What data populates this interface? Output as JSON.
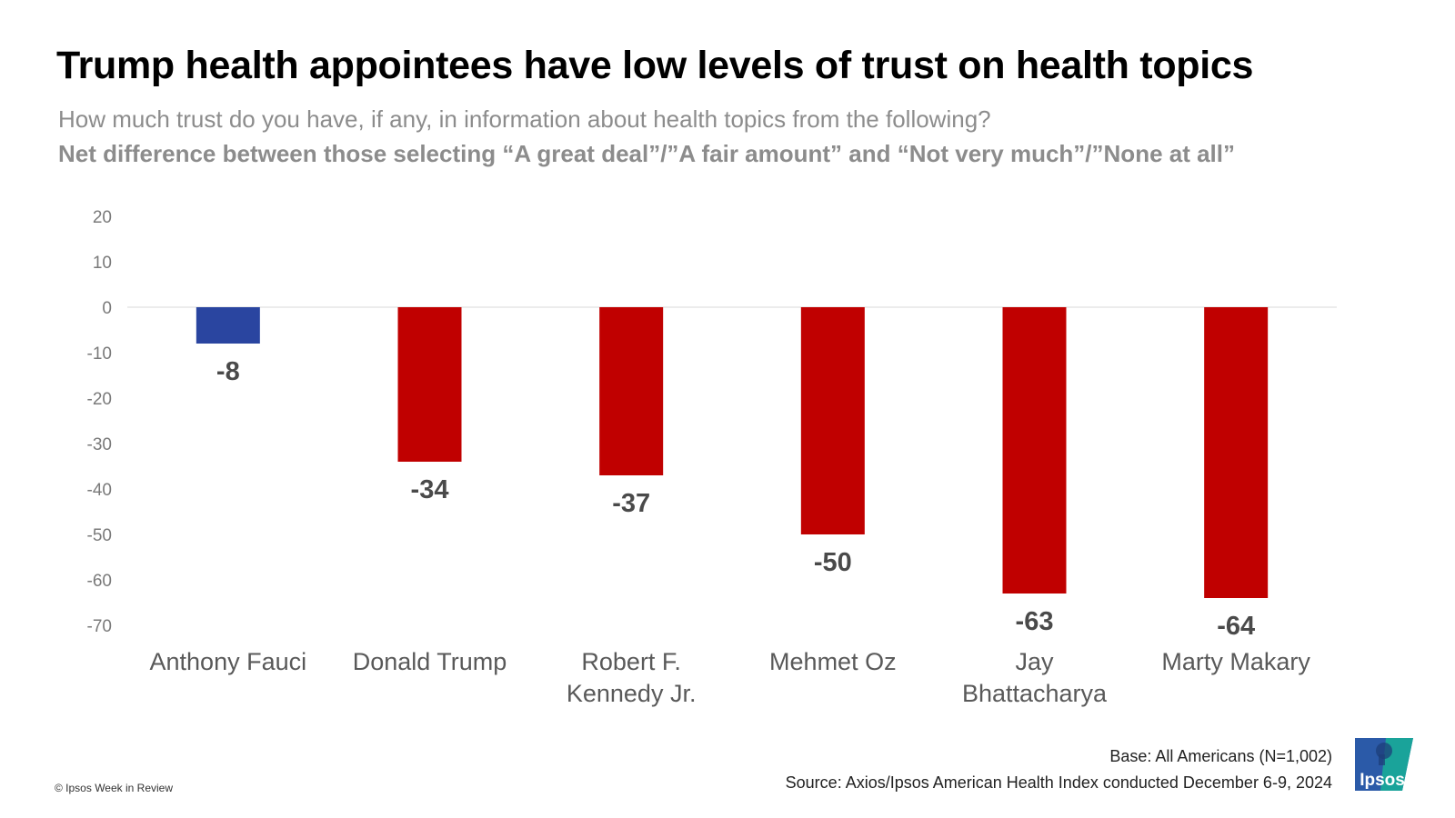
{
  "header": {
    "title": "Trump health appointees have low levels of trust on health topics",
    "subtitle": "How much trust do you have, if any, in information about health topics from the following?",
    "subtitle_bold": "Net difference between those selecting  “A great deal”/”A fair amount” and “Not very much”/”None at all”"
  },
  "chart_data": {
    "type": "bar",
    "categories": [
      [
        "Anthony Fauci"
      ],
      [
        "Donald Trump"
      ],
      [
        "Robert F.",
        "Kennedy Jr."
      ],
      [
        "Mehmet Oz"
      ],
      [
        "Jay",
        "Bhattacharya"
      ],
      [
        "Marty Makary"
      ]
    ],
    "values": [
      -8,
      -34,
      -37,
      -50,
      -63,
      -64
    ],
    "value_labels": [
      "-8",
      "-34",
      "-37",
      "-50",
      "-63",
      "-64"
    ],
    "bar_colors": [
      "#2a45a0",
      "#c00000",
      "#c00000",
      "#c00000",
      "#c00000",
      "#c00000"
    ],
    "y_ticks": [
      20,
      10,
      0,
      -10,
      -20,
      -30,
      -40,
      -50,
      -60,
      -70
    ],
    "y_tick_labels": [
      "20",
      "10",
      "0",
      "-10",
      "-20",
      "-30",
      "-40",
      "-50",
      "-60",
      "-70"
    ],
    "ylim": [
      -70,
      20
    ],
    "grid": false,
    "legend": "none"
  },
  "footer": {
    "base": "Base:  All Americans (N=1,002)",
    "source": "Source: Axios/Ipsos American Health Index conducted December 6-9, 2024",
    "copyright": "© Ipsos Week in Review",
    "logo_text": "Ipsos"
  },
  "colors": {
    "positive_bar": "#2a45a0",
    "negative_bar": "#c00000",
    "logo_blue": "#2b5aa8",
    "logo_teal": "#1aa39a"
  }
}
